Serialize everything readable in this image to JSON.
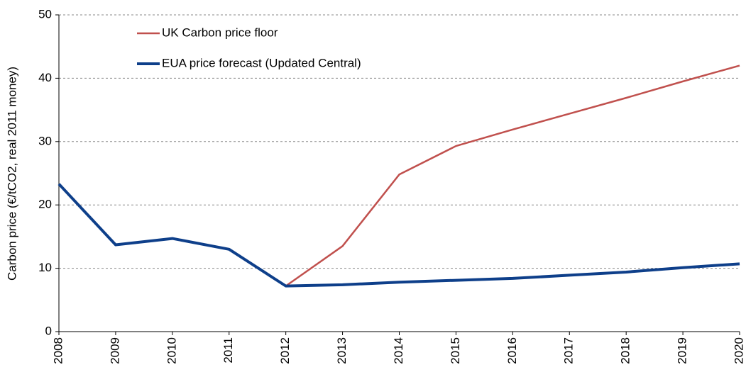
{
  "chart_data": {
    "type": "line",
    "y_label": "Carbon price (€/tCO2, real 2011 money)",
    "categories": [
      "2008",
      "2009",
      "2010",
      "2011",
      "2012",
      "2013",
      "2014",
      "2015",
      "2016",
      "2017",
      "2018",
      "2019",
      "2020"
    ],
    "series": [
      {
        "name": "UK Carbon price floor",
        "color": "#c0504d",
        "width": 2.5,
        "values": [
          null,
          null,
          null,
          null,
          7.2,
          13.5,
          24.8,
          29.3,
          31.9,
          34.4,
          36.9,
          39.5,
          42.0
        ]
      },
      {
        "name": "EUA price forecast (Updated Central)",
        "color": "#0e3f8a",
        "width": 4,
        "values": [
          23.3,
          13.7,
          14.7,
          13.0,
          7.2,
          7.4,
          7.8,
          8.1,
          8.4,
          8.9,
          9.4,
          10.1,
          10.7
        ]
      }
    ],
    "ylim": [
      0,
      50
    ],
    "yticks": [
      0,
      10,
      20,
      30,
      40,
      50
    ],
    "grid": true,
    "legend": "upper left"
  }
}
